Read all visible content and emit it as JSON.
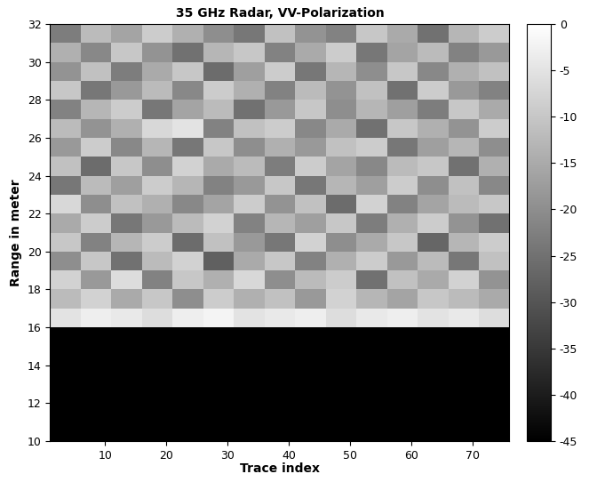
{
  "chart_data": {
    "type": "heatmap",
    "title": "35 GHz Radar, VV-Polarization",
    "x_label": "Trace index",
    "y_label": "Range in meter",
    "xlim": [
      1,
      76
    ],
    "ylim": [
      10,
      32
    ],
    "xticks": [
      10,
      20,
      30,
      40,
      50,
      60,
      70
    ],
    "yticks": [
      10,
      12,
      14,
      16,
      18,
      20,
      22,
      24,
      26,
      28,
      30,
      32
    ],
    "color": "gray",
    "x_edges": [
      1,
      6,
      11,
      16,
      21,
      26,
      31,
      36,
      41,
      46,
      51,
      56,
      61,
      66,
      71,
      76
    ],
    "y_edges": [
      10,
      11,
      12,
      13,
      14,
      15,
      16,
      17,
      18,
      19,
      20,
      21,
      22,
      23,
      24,
      25,
      26,
      27,
      28,
      29,
      30,
      31,
      32
    ],
    "cells": [
      [
        -45,
        -45,
        -45,
        -45,
        -45,
        -45,
        -45,
        -45,
        -45,
        -45,
        -45,
        -45,
        -45,
        -45,
        -45
      ],
      [
        -45,
        -45,
        -45,
        -45,
        -45,
        -45,
        -45,
        -45,
        -45,
        -45,
        -45,
        -45,
        -45,
        -45,
        -45
      ],
      [
        -45,
        -45,
        -45,
        -45,
        -45,
        -45,
        -45,
        -45,
        -45,
        -45,
        -45,
        -45,
        -45,
        -45,
        -45
      ],
      [
        -45,
        -45,
        -45,
        -45,
        -45,
        -45,
        -45,
        -45,
        -45,
        -45,
        -45,
        -45,
        -45,
        -45,
        -45
      ],
      [
        -45,
        -45,
        -45,
        -45,
        -45,
        -45,
        -45,
        -45,
        -45,
        -45,
        -45,
        -45,
        -45,
        -45,
        -45
      ],
      [
        -45,
        -45,
        -45,
        -45,
        -45,
        -45,
        -45,
        -45,
        -45,
        -45,
        -45,
        -45,
        -45,
        -45,
        -45
      ],
      [
        -5,
        -3,
        -4,
        -6,
        -3,
        -2,
        -5,
        -4,
        -3,
        -6,
        -4,
        -3,
        -5,
        -4,
        -6
      ],
      [
        -12,
        -8,
        -15,
        -10,
        -20,
        -9,
        -14,
        -11,
        -18,
        -8,
        -13,
        -16,
        -10,
        -12,
        -15
      ],
      [
        -8,
        -18,
        -6,
        -22,
        -10,
        -14,
        -7,
        -20,
        -12,
        -9,
        -25,
        -11,
        -15,
        -8,
        -19
      ],
      [
        -20,
        -10,
        -25,
        -12,
        -8,
        -28,
        -15,
        -10,
        -22,
        -14,
        -9,
        -18,
        -12,
        -24,
        -11
      ],
      [
        -10,
        -22,
        -13,
        -9,
        -26,
        -11,
        -18,
        -24,
        -8,
        -20,
        -15,
        -10,
        -27,
        -13,
        -9
      ],
      [
        -15,
        -9,
        -24,
        -18,
        -12,
        -8,
        -22,
        -13,
        -17,
        -10,
        -23,
        -14,
        -9,
        -19,
        -25
      ],
      [
        -7,
        -20,
        -11,
        -14,
        -21,
        -16,
        -9,
        -19,
        -11,
        -26,
        -8,
        -22,
        -16,
        -12,
        -10
      ],
      [
        -24,
        -12,
        -17,
        -9,
        -13,
        -22,
        -18,
        -10,
        -24,
        -13,
        -17,
        -9,
        -20,
        -11,
        -21
      ],
      [
        -11,
        -26,
        -10,
        -20,
        -8,
        -15,
        -12,
        -23,
        -9,
        -16,
        -21,
        -12,
        -10,
        -25,
        -14
      ],
      [
        -18,
        -9,
        -21,
        -13,
        -24,
        -10,
        -20,
        -14,
        -18,
        -11,
        -9,
        -24,
        -17,
        -13,
        -20
      ],
      [
        -12,
        -19,
        -14,
        -7,
        -5,
        -22,
        -11,
        -9,
        -21,
        -15,
        -25,
        -10,
        -14,
        -19,
        -9
      ],
      [
        -22,
        -13,
        -9,
        -24,
        -16,
        -12,
        -25,
        -18,
        -10,
        -20,
        -13,
        -17,
        -23,
        -10,
        -15
      ],
      [
        -10,
        -24,
        -18,
        -12,
        -21,
        -9,
        -14,
        -22,
        -12,
        -19,
        -11,
        -25,
        -9,
        -18,
        -22
      ],
      [
        -19,
        -11,
        -23,
        -15,
        -10,
        -26,
        -17,
        -9,
        -24,
        -13,
        -20,
        -10,
        -21,
        -14,
        -11
      ],
      [
        -14,
        -21,
        -10,
        -19,
        -25,
        -13,
        -10,
        -22,
        -15,
        -9,
        -24,
        -16,
        -12,
        -22,
        -18
      ],
      [
        -23,
        -12,
        -16,
        -9,
        -14,
        -20,
        -24,
        -11,
        -19,
        -22,
        -10,
        -15,
        -25,
        -13,
        -9
      ]
    ],
    "colorbar": {
      "range": [
        -45,
        0
      ],
      "ticks": [
        0,
        -5,
        -10,
        -15,
        -20,
        -25,
        -30,
        -35,
        -40,
        -45
      ]
    }
  }
}
